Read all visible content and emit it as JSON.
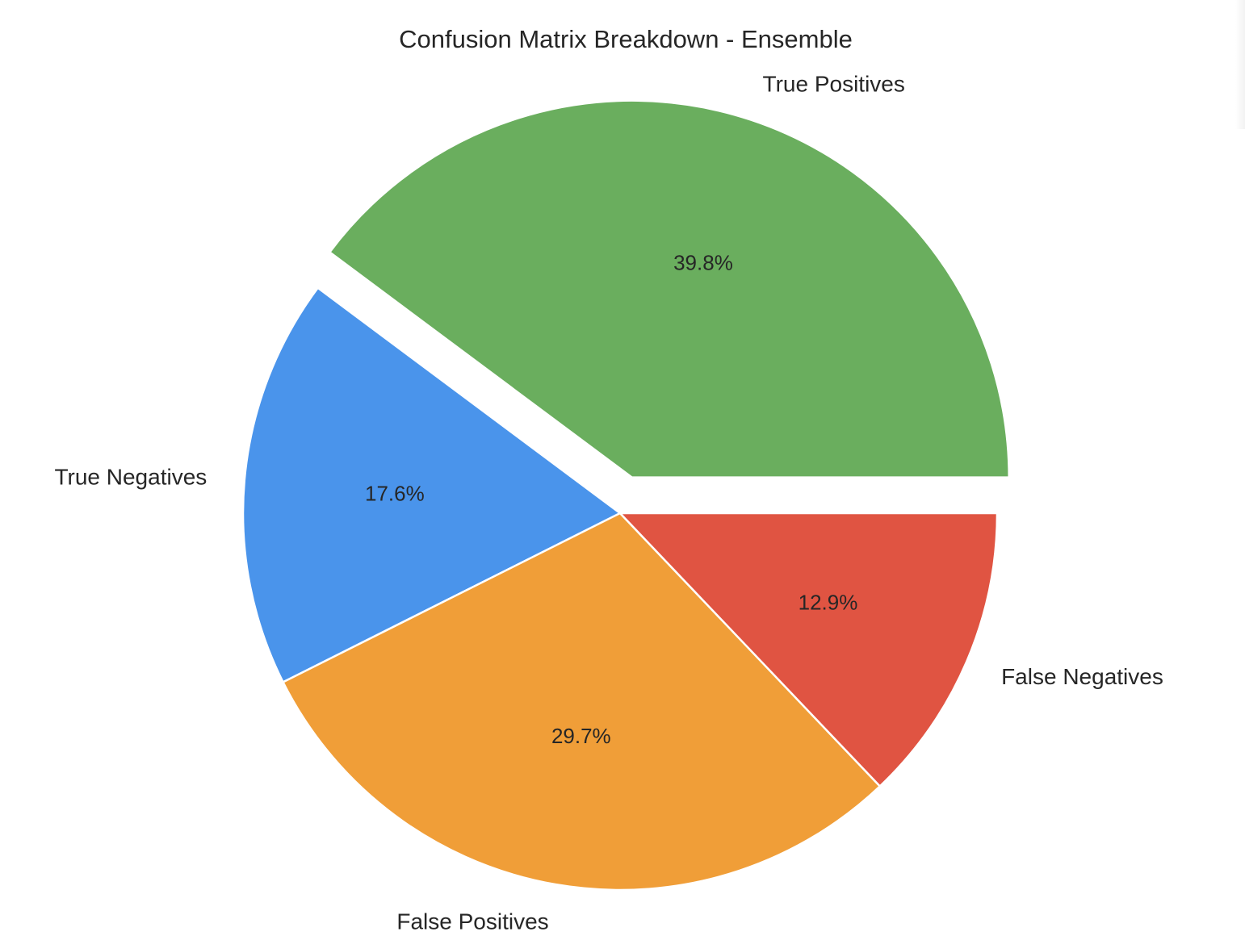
{
  "chart_data": {
    "type": "pie",
    "title": "Confusion Matrix Breakdown - Ensemble",
    "start_angle_deg": 0,
    "direction": "counterclockwise",
    "explode": [
      0.1,
      0,
      0,
      0
    ],
    "slices": [
      {
        "label": "True Positives",
        "value": 39.8,
        "display": "39.8%",
        "color": "#6aae5e"
      },
      {
        "label": "True Negatives",
        "value": 17.6,
        "display": "17.6%",
        "color": "#4a94eb"
      },
      {
        "label": "False Positives",
        "value": 29.7,
        "display": "29.7%",
        "color": "#f09e38"
      },
      {
        "label": "False Negatives",
        "value": 12.9,
        "display": "12.9%",
        "color": "#e05442"
      }
    ]
  }
}
